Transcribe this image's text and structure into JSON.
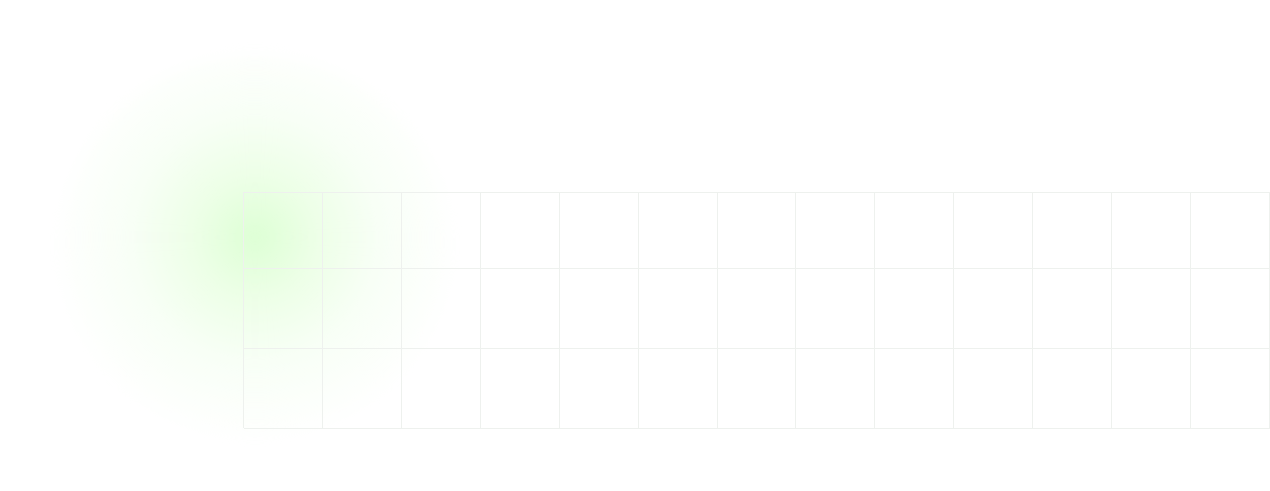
{
  "page": {
    "background_color": "#ffffff"
  },
  "glow": {
    "color": "#d7ffcd"
  },
  "grid": {
    "rows": 3,
    "columns": 13,
    "line_color": "#eef1ee"
  }
}
